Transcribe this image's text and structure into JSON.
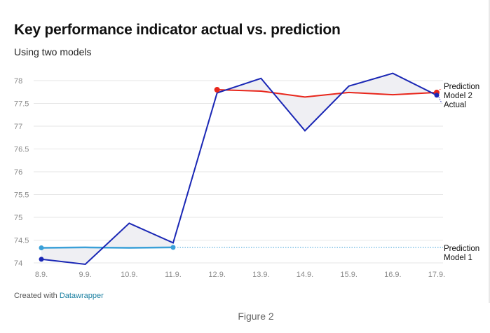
{
  "chart_data": {
    "type": "line",
    "title": "Key performance indicator actual vs. prediction",
    "subtitle": "Using two models",
    "xlabel": "",
    "ylabel": "",
    "categories": [
      "8.9.",
      "9.9.",
      "10.9.",
      "11.9.",
      "12.9.",
      "13.9.",
      "14.9.",
      "15.9.",
      "16.9.",
      "17.9."
    ],
    "y_ticks": [
      "74",
      "74.5",
      "75",
      "75.5",
      "76",
      "76.5",
      "77",
      "77.5",
      "78"
    ],
    "ylim": [
      74,
      78
    ],
    "grid": true,
    "series": [
      {
        "name": "Actual",
        "color": "#1a27b5",
        "values": [
          74.08,
          73.97,
          74.87,
          74.44,
          77.73,
          78.05,
          76.9,
          77.88,
          78.16,
          77.68
        ]
      },
      {
        "name": "Prediction Model 1",
        "color": "#3aa0d8",
        "values": [
          74.33,
          74.34,
          74.33,
          74.34,
          null,
          null,
          null,
          null,
          null,
          null
        ],
        "reference_value": 74.34
      },
      {
        "name": "Prediction Model 2",
        "color": "#e8261b",
        "values": [
          null,
          null,
          null,
          null,
          77.8,
          77.77,
          77.64,
          77.74,
          77.69,
          77.74
        ]
      }
    ],
    "labels": {
      "model2": [
        "Prediction",
        "Model 2"
      ],
      "actual": "Actual",
      "model1": [
        "Prediction",
        "Model 1"
      ]
    },
    "colors": {
      "grid": "#e6e6e6",
      "tick_text": "#8a8a8a",
      "area_fill": "#efeff3"
    }
  },
  "footer": {
    "prefix": "Created with ",
    "link": "Datawrapper"
  },
  "caption": "Figure 2"
}
